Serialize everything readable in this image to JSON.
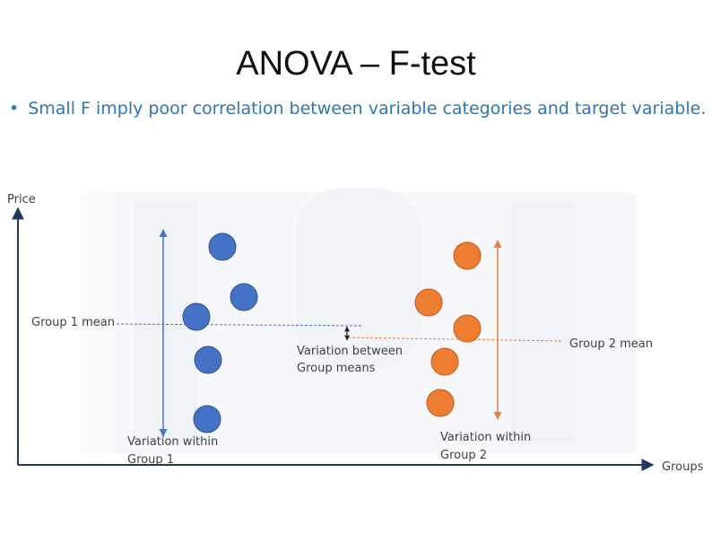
{
  "slide": {
    "title": "ANOVA – F-test",
    "bullet_symbol": "•",
    "bullet_text": "Small F  imply poor correlation between variable categories and target variable."
  },
  "diagram": {
    "y_axis_label": "Price",
    "x_axis_label": "Groups",
    "group1_mean_label": "Group 1 mean",
    "group2_mean_label": "Group 2 mean",
    "between_label": [
      "Variation between",
      "Group means"
    ],
    "within1_label": [
      "Variation within",
      "Group 1"
    ],
    "within2_label": [
      "Variation within",
      "Group 2"
    ],
    "group1_points": [
      {
        "group": 1,
        "price_rank": 5
      },
      {
        "group": 1,
        "price_rank": 4
      },
      {
        "group": 1,
        "price_rank": 3
      },
      {
        "group": 1,
        "price_rank": 2
      },
      {
        "group": 1,
        "price_rank": 1
      }
    ],
    "group2_points": [
      {
        "group": 2,
        "price_rank": 5
      },
      {
        "group": 2,
        "price_rank": 4
      },
      {
        "group": 2,
        "price_rank": 3
      },
      {
        "group": 2,
        "price_rank": 2
      },
      {
        "group": 2,
        "price_rank": 1
      }
    ],
    "colors": {
      "group1": "#4472c4",
      "group1_stroke": "#2f5597",
      "group2": "#ed7d31",
      "group2_stroke": "#c55a11",
      "axis": "#1f3864",
      "label": "#404040",
      "watermark": "#f0f3f7"
    }
  }
}
